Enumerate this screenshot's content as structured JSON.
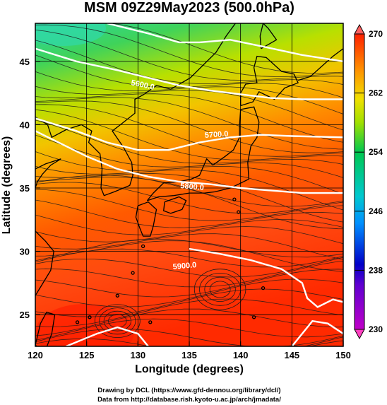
{
  "title": "MSM 09Z29May2023 (500.0hPa)",
  "xlabel": "Longitude (degrees)",
  "ylabel": "Latitude  (degrees)",
  "x_ticks": [
    "120",
    "125",
    "130",
    "135",
    "140",
    "145",
    "150"
  ],
  "y_ticks": [
    "25",
    "30",
    "35",
    "40",
    "45"
  ],
  "x_range": [
    120,
    150
  ],
  "y_range": [
    22.5,
    48
  ],
  "colorbar": {
    "ticks": [
      "230",
      "238",
      "246",
      "254",
      "262",
      "270"
    ],
    "range": [
      230,
      270
    ],
    "colors": [
      "#cc00cc",
      "#0000cc",
      "#00b0ff",
      "#00cc66",
      "#cccc00",
      "#ff8800",
      "#ff2200"
    ]
  },
  "contour_labels": [
    "5600.0",
    "5700.0",
    "5800.0",
    "5900.0"
  ],
  "credits": {
    "line1": "Drawing by DCL (https://www.gfd-dennou.org/library/dcl/)",
    "line2": "Data from http://database.rish.kyoto-u.ac.jp/arch/jmadata/"
  }
}
